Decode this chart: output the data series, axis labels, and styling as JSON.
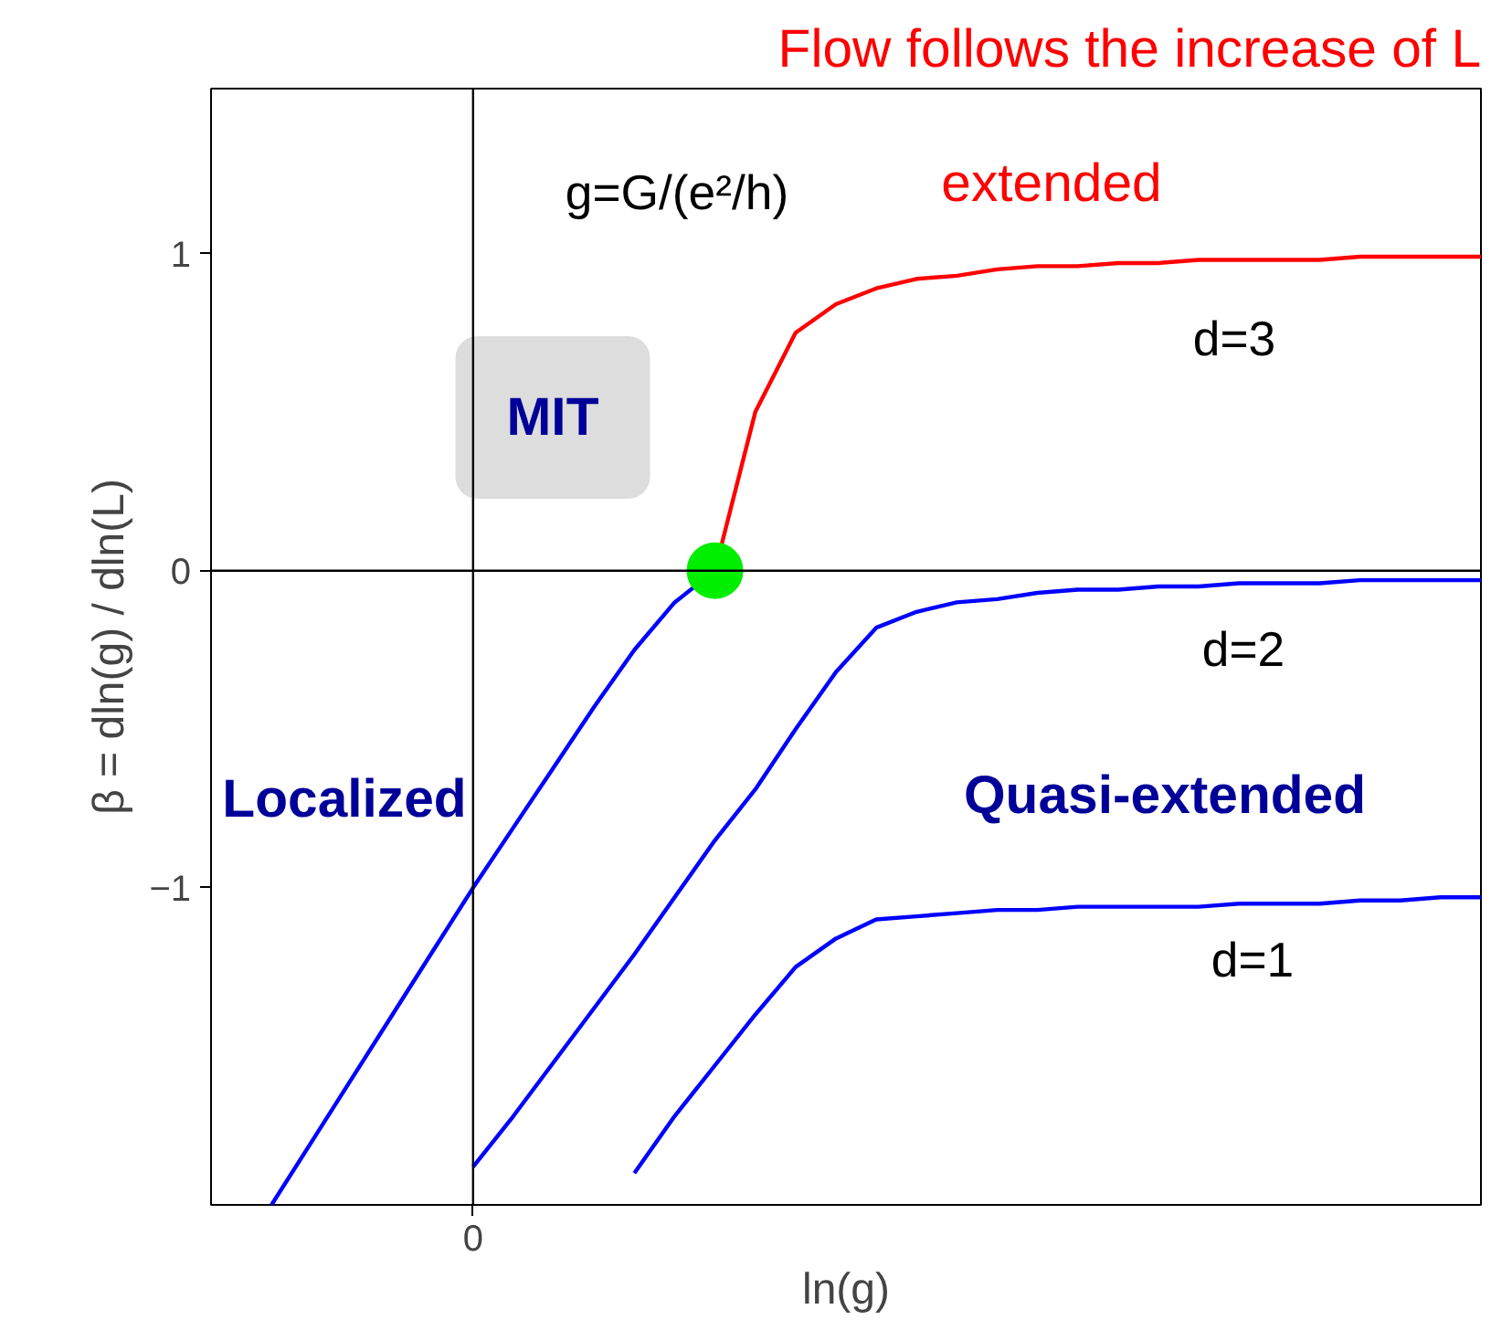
{
  "chart_data": {
    "type": "line",
    "title": "Flow follows the increase of L",
    "xlabel": "ln(g)",
    "ylabel": "β = dln(g) / dln(L)",
    "categories": [
      null,
      null,
      null,
      null,
      null,
      null,
      "0",
      null,
      null,
      null,
      null,
      null,
      null,
      null,
      null,
      null,
      null,
      null,
      null,
      null,
      null,
      null,
      null,
      null,
      null,
      null,
      null,
      null,
      null,
      null,
      null,
      null
    ],
    "ylim": [
      -2.0,
      1.52
    ],
    "yticks": [
      {
        "value": -1,
        "label": "−1"
      },
      {
        "value": 0,
        "label": "0"
      },
      {
        "value": 1,
        "label": "1"
      }
    ],
    "grid": false,
    "marker": "none",
    "line_style": "solid",
    "series": [
      {
        "color": "#0000ff",
        "values": [
          null,
          -2.0,
          -1.8,
          -1.6,
          -1.4,
          -1.2,
          -1.0,
          -0.81,
          -0.62,
          -0.43,
          -0.25,
          -0.1,
          0,
          null,
          null,
          null,
          null,
          null,
          null,
          null,
          null,
          null,
          null,
          null,
          null,
          null,
          null,
          null,
          null,
          null,
          null,
          null
        ]
      },
      {
        "color": "#ff0000",
        "values": [
          null,
          null,
          null,
          null,
          null,
          null,
          null,
          null,
          null,
          null,
          null,
          null,
          0,
          0.5,
          0.75,
          0.84,
          0.89,
          0.92,
          0.93,
          0.95,
          0.96,
          0.96,
          0.97,
          0.97,
          0.98,
          0.98,
          0.98,
          0.98,
          0.99,
          0.99,
          0.99,
          0.99
        ]
      },
      {
        "color": "#0000ff",
        "values": [
          null,
          null,
          null,
          null,
          null,
          null,
          -1.88,
          -1.72,
          -1.55,
          -1.38,
          -1.21,
          -1.03,
          -0.85,
          -0.69,
          -0.5,
          -0.32,
          -0.18,
          -0.13,
          -0.1,
          -0.09,
          -0.07,
          -0.06,
          -0.06,
          -0.05,
          -0.05,
          -0.04,
          -0.04,
          -0.04,
          -0.03,
          -0.03,
          -0.03,
          -0.03
        ]
      },
      {
        "color": "#0000ff",
        "values": [
          null,
          null,
          null,
          null,
          null,
          null,
          null,
          null,
          null,
          null,
          -1.9,
          -1.72,
          -1.56,
          -1.4,
          -1.25,
          -1.16,
          -1.1,
          -1.09,
          -1.08,
          -1.07,
          -1.07,
          -1.06,
          -1.06,
          -1.06,
          -1.06,
          -1.05,
          -1.05,
          -1.05,
          -1.04,
          -1.04,
          -1.03,
          -1.03
        ]
      },
      {
        "type": "scatter",
        "marker": "circle",
        "color": "#00ee00",
        "values": [
          null,
          null,
          null,
          null,
          null,
          null,
          null,
          null,
          null,
          null,
          null,
          null,
          0,
          null,
          null,
          null,
          null,
          null,
          null,
          null,
          null,
          null,
          null,
          null,
          null,
          null,
          null,
          null,
          null,
          null,
          null,
          null
        ]
      }
    ],
    "ref_lines": [
      {
        "axis": "x",
        "value": "0",
        "color": "#000000"
      },
      {
        "axis": "y",
        "value": 0,
        "color": "#000000"
      }
    ],
    "annotations": [
      "g=G/(e²/h)",
      "extended",
      "d=3",
      "d=2",
      "d=1",
      "MIT",
      "Localized",
      "Quasi-extended"
    ]
  }
}
